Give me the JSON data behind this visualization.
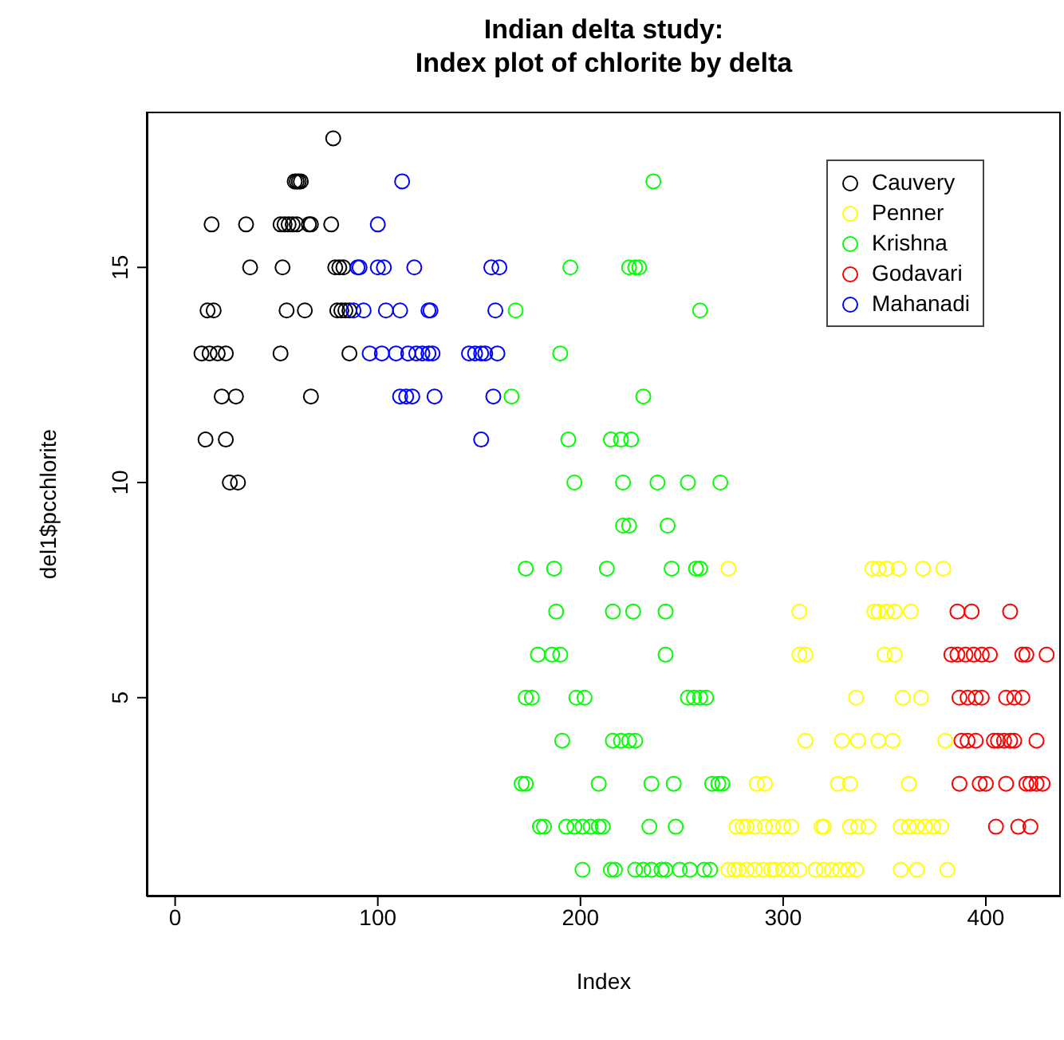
{
  "chart_data": {
    "type": "scatter",
    "title": "Indian delta study:\nIndex plot of chlorite by delta",
    "xlabel": "Index",
    "ylabel": "del1$pcchlorite",
    "xlim": [
      -14,
      437
    ],
    "ylim": [
      0.38,
      18.62
    ],
    "xticks": [
      0,
      100,
      200,
      300,
      400
    ],
    "yticks": [
      5,
      10,
      15
    ],
    "legend": "top right",
    "marker": "circle",
    "series": [
      {
        "name": "Cauvery",
        "color": "#000000",
        "x": [
          78,
          59,
          60,
          61,
          62,
          18,
          35,
          52,
          54,
          56,
          58,
          60,
          66,
          67,
          77,
          37,
          53,
          79,
          81,
          83,
          16,
          19,
          55,
          64,
          80,
          82,
          84,
          86,
          13,
          17,
          21,
          25,
          52,
          86,
          23,
          30,
          67,
          15,
          25,
          27,
          31
        ],
        "values": [
          18,
          17,
          17,
          17,
          17,
          16,
          16,
          16,
          16,
          16,
          16,
          16,
          16,
          16,
          16,
          15,
          15,
          15,
          15,
          15,
          14,
          14,
          14,
          14,
          14,
          14,
          14,
          14,
          13,
          13,
          13,
          13,
          13,
          13,
          12,
          12,
          12,
          11,
          11,
          10,
          10
        ]
      },
      {
        "name": "Penner",
        "color": "#ffff00",
        "x": [
          273,
          344,
          347,
          351,
          357,
          369,
          379,
          308,
          345,
          347,
          351,
          355,
          363,
          308,
          311,
          350,
          355,
          336,
          359,
          368,
          311,
          329,
          337,
          347,
          354,
          380,
          287,
          291,
          327,
          333,
          362,
          277,
          280,
          282,
          286,
          291,
          295,
          300,
          304,
          319,
          320,
          333,
          337,
          342,
          358,
          362,
          366,
          370,
          374,
          378,
          273,
          276,
          278,
          282,
          286,
          290,
          294,
          296,
          300,
          304,
          308,
          316,
          320,
          324,
          328,
          332,
          336,
          358,
          366,
          381
        ],
        "values": [
          8,
          8,
          8,
          8,
          8,
          8,
          8,
          7,
          7,
          7,
          7,
          7,
          7,
          6,
          6,
          6,
          6,
          5,
          5,
          5,
          4,
          4,
          4,
          4,
          4,
          4,
          3,
          3,
          3,
          3,
          3,
          2,
          2,
          2,
          2,
          2,
          2,
          2,
          2,
          2,
          2,
          2,
          2,
          2,
          2,
          2,
          2,
          2,
          2,
          2,
          1,
          1,
          1,
          1,
          1,
          1,
          1,
          1,
          1,
          1,
          1,
          1,
          1,
          1,
          1,
          1,
          1,
          1,
          1,
          1
        ]
      },
      {
        "name": "Krishna",
        "color": "#00ff00",
        "x": [
          236,
          195,
          224,
          227,
          229,
          259,
          168,
          190,
          231,
          166,
          194,
          215,
          220,
          225,
          197,
          221,
          238,
          253,
          269,
          221,
          224,
          243,
          173,
          187,
          213,
          245,
          257,
          259,
          188,
          216,
          226,
          242,
          179,
          186,
          190,
          242,
          173,
          176,
          198,
          202,
          253,
          256,
          259,
          262,
          191,
          216,
          220,
          224,
          227,
          171,
          173,
          209,
          235,
          246,
          265,
          268,
          270,
          180,
          182,
          193,
          197,
          201,
          205,
          209,
          211,
          234,
          247,
          201,
          215,
          217,
          227,
          231,
          235,
          240,
          242,
          249,
          254,
          261,
          264
        ],
        "values": [
          17,
          15,
          15,
          15,
          15,
          14,
          14,
          13,
          12,
          12,
          11,
          11,
          11,
          11,
          10,
          10,
          10,
          10,
          10,
          9,
          9,
          9,
          8,
          8,
          8,
          8,
          8,
          8,
          7,
          7,
          7,
          7,
          6,
          6,
          6,
          6,
          5,
          5,
          5,
          5,
          5,
          5,
          5,
          5,
          4,
          4,
          4,
          4,
          4,
          3,
          3,
          3,
          3,
          3,
          3,
          3,
          3,
          2,
          2,
          2,
          2,
          2,
          2,
          2,
          2,
          2,
          2,
          1,
          1,
          1,
          1,
          1,
          1,
          1,
          1,
          1,
          1,
          1,
          1
        ]
      },
      {
        "name": "Godavari",
        "color": "#ff0000",
        "x": [
          386,
          393,
          412,
          383,
          386,
          390,
          394,
          398,
          402,
          418,
          420,
          430,
          387,
          391,
          395,
          398,
          410,
          414,
          418,
          388,
          391,
          395,
          404,
          406,
          409,
          412,
          414,
          425,
          387,
          397,
          400,
          410,
          420,
          422,
          425,
          428,
          405,
          416,
          422
        ],
        "values": [
          7,
          7,
          7,
          6,
          6,
          6,
          6,
          6,
          6,
          6,
          6,
          6,
          5,
          5,
          5,
          5,
          5,
          5,
          5,
          4,
          4,
          4,
          4,
          4,
          4,
          4,
          4,
          4,
          3,
          3,
          3,
          3,
          3,
          3,
          3,
          3,
          2,
          2,
          2
        ]
      },
      {
        "name": "Mahanadi",
        "color": "#0000ff",
        "x": [
          112,
          100,
          90,
          91,
          100,
          103,
          118,
          156,
          160,
          88,
          93,
          104,
          111,
          125,
          126,
          158,
          96,
          102,
          109,
          115,
          119,
          122,
          125,
          127,
          145,
          148,
          151,
          153,
          159,
          111,
          114,
          117,
          128,
          157,
          151
        ],
        "values": [
          17,
          16,
          15,
          15,
          15,
          15,
          15,
          15,
          15,
          14,
          14,
          14,
          14,
          14,
          14,
          14,
          13,
          13,
          13,
          13,
          13,
          13,
          13,
          13,
          13,
          13,
          13,
          13,
          13,
          12,
          12,
          12,
          12,
          12,
          11
        ]
      }
    ]
  }
}
